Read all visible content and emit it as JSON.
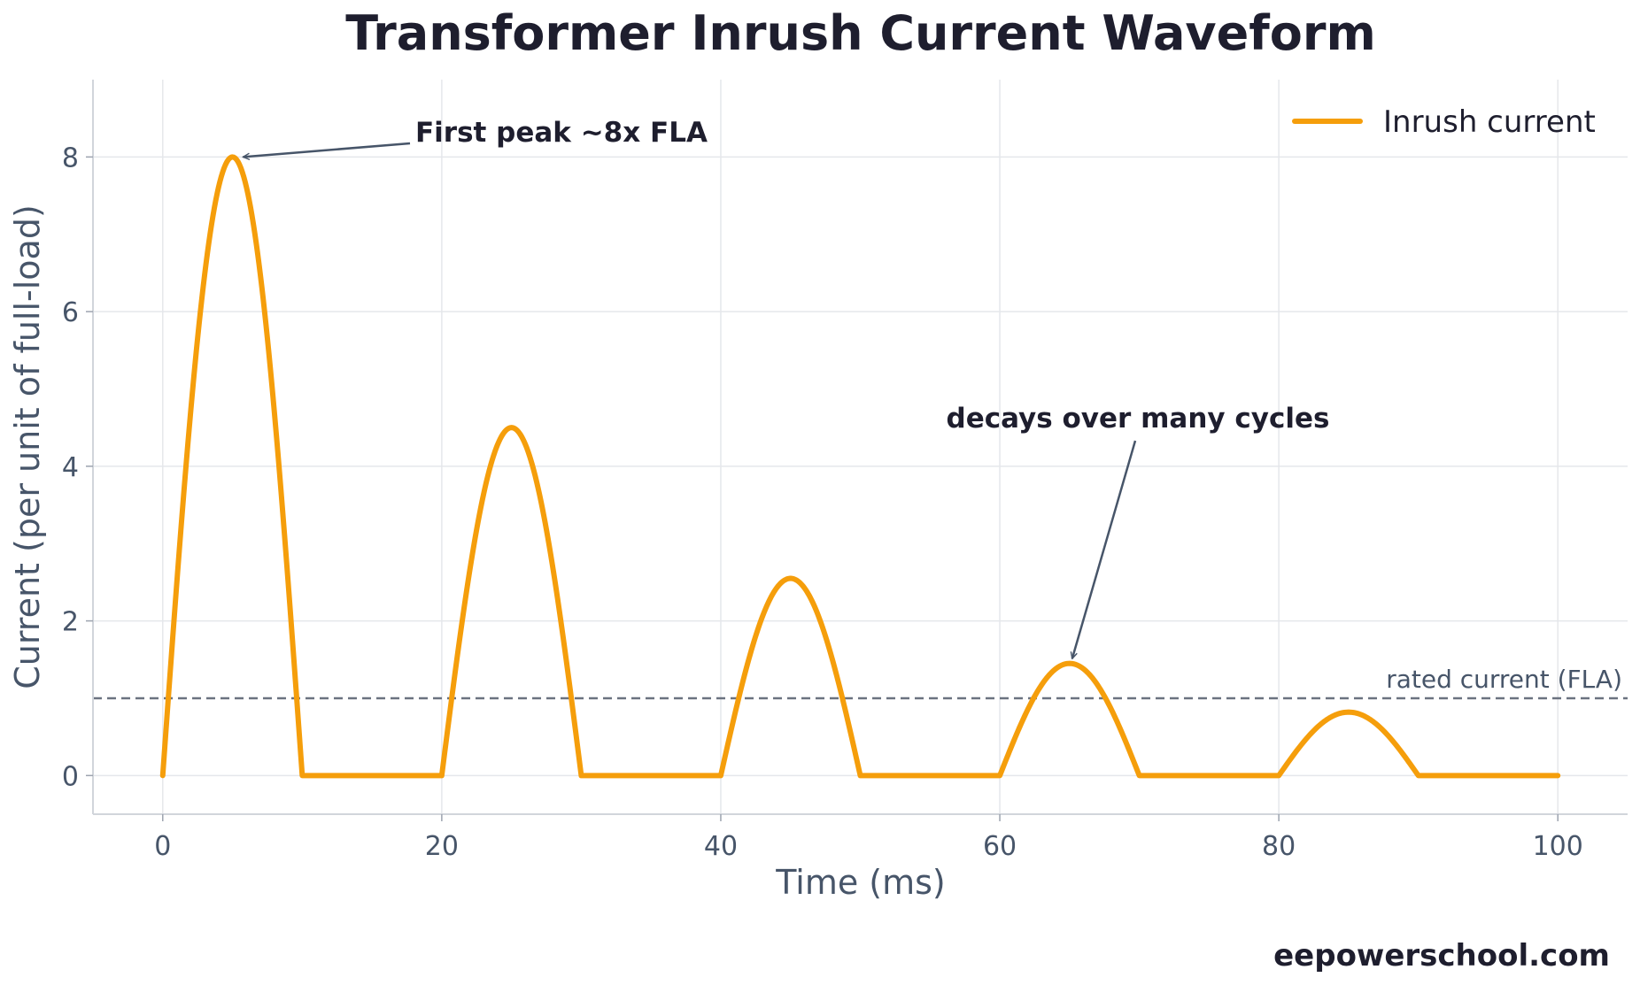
{
  "chart_data": {
    "type": "line",
    "title": "Transformer Inrush Current Waveform",
    "xlabel": "Time (ms)",
    "ylabel": "Current (per unit of full-load)",
    "xlim": [
      -5,
      105
    ],
    "ylim": [
      -0.5,
      9
    ],
    "xticks": [
      0,
      20,
      40,
      60,
      80,
      100
    ],
    "yticks": [
      0,
      2,
      4,
      6,
      8
    ],
    "grid": true,
    "legend_position": "top-right",
    "series": [
      {
        "name": "Inrush current",
        "color": "#f59e0b",
        "cycle_period_ms": 20,
        "conduction_ms": 10,
        "peak_values": [
          8.0,
          4.5,
          2.55,
          1.45,
          0.82
        ],
        "x_range": [
          0,
          100
        ]
      }
    ],
    "reference_line": {
      "y": 1.0,
      "label": "rated current (FLA)",
      "color": "#6b7280",
      "style": "dashed"
    },
    "annotations": [
      {
        "text": "First peak ~8x FLA",
        "point": [
          5,
          8.0
        ]
      },
      {
        "text": "decays over many cycles",
        "point": [
          65,
          1.65
        ]
      }
    ]
  },
  "watermark": "eepowerschool.com"
}
